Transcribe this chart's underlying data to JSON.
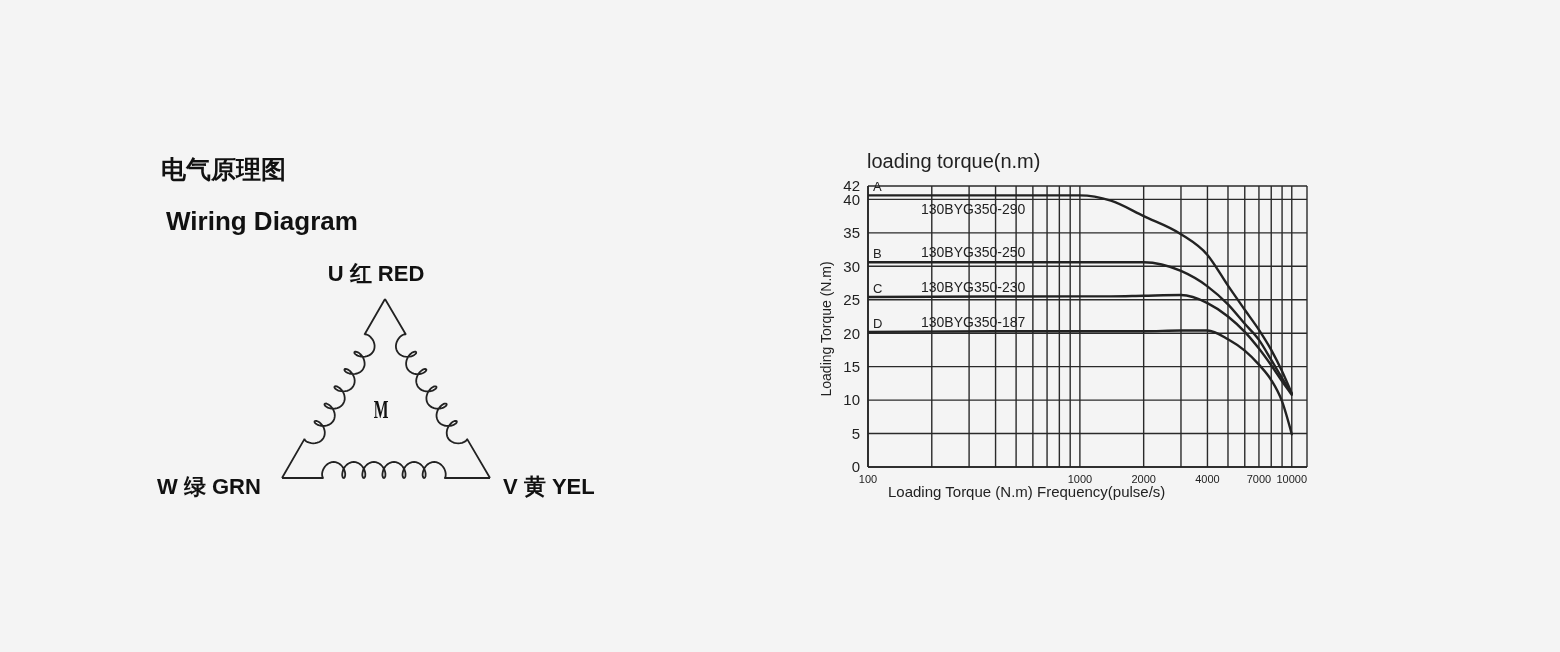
{
  "chart_data": [
    {
      "type": "other",
      "title": "电气原理图",
      "subtitle": "Wiring Diagram",
      "annotations": [
        "U 红 RED",
        "M",
        "W 绿 GRN",
        "V 黄 YEL"
      ]
    },
    {
      "type": "line",
      "title": "loading torque(n.m)",
      "xlabel": "Loading Torque (N.m)  Frequency(pulse/s)",
      "ylabel": "Loading Torque (N.m)",
      "log": "x",
      "x": [
        100,
        1000,
        1400,
        2000,
        3000,
        4000,
        5000,
        6000,
        7000,
        8000,
        9000,
        10000
      ],
      "series": [
        {
          "name": "130BYG350-290",
          "color": "#222222",
          "values": [
            40.6,
            40.6,
            39.8,
            37.5,
            34.8,
            31.7,
            27.1,
            23.5,
            20.5,
            17.5,
            14.3,
            11
          ]
        },
        {
          "name": "130BYG350-250",
          "color": "#222222",
          "values": [
            30.6,
            30.6,
            30.6,
            30.6,
            29.3,
            27,
            24.3,
            21.4,
            19,
            16,
            13.3,
            11
          ]
        },
        {
          "name": "130BYG350-230",
          "color": "#222222",
          "values": [
            25.4,
            25.5,
            25.5,
            25.6,
            25.7,
            24.5,
            22.5,
            20.2,
            17.7,
            15.2,
            12.8,
            10.8
          ]
        },
        {
          "name": "130BYG350-187",
          "color": "#222222",
          "values": [
            20.2,
            20.3,
            20.3,
            20.3,
            20.4,
            20.4,
            19.1,
            17.4,
            15.3,
            13,
            9.8,
            4.9
          ]
        }
      ],
      "annotations": [
        {
          "text": "A",
          "y": 40.6
        },
        {
          "text": "B",
          "y": 30.6
        },
        {
          "text": "C",
          "y": 25.4
        },
        {
          "text": "D",
          "y": 20.2
        }
      ],
      "xlim": [
        100,
        11800
      ],
      "xticks": [
        100,
        {
          "value": 200,
          "label": null
        },
        {
          "value": 300,
          "label": null
        },
        {
          "value": 400,
          "label": null
        },
        {
          "value": 500,
          "label": null
        },
        {
          "value": 600,
          "label": null
        },
        {
          "value": 700,
          "label": null
        },
        {
          "value": 800,
          "label": null
        },
        {
          "value": 900,
          "label": null
        },
        1000,
        2000,
        {
          "value": 3000,
          "label": null
        },
        4000,
        {
          "value": 5000,
          "label": null
        },
        {
          "value": 6000,
          "label": null
        },
        7000,
        {
          "value": 8000,
          "label": null
        },
        {
          "value": 9000,
          "label": null
        },
        10000
      ],
      "ylim": [
        0,
        42
      ],
      "yticks": [
        0,
        5,
        10,
        15,
        20,
        25,
        30,
        35,
        40,
        42
      ],
      "grid": true,
      "legend": false,
      "marker": "none",
      "line_style": "solid"
    }
  ]
}
